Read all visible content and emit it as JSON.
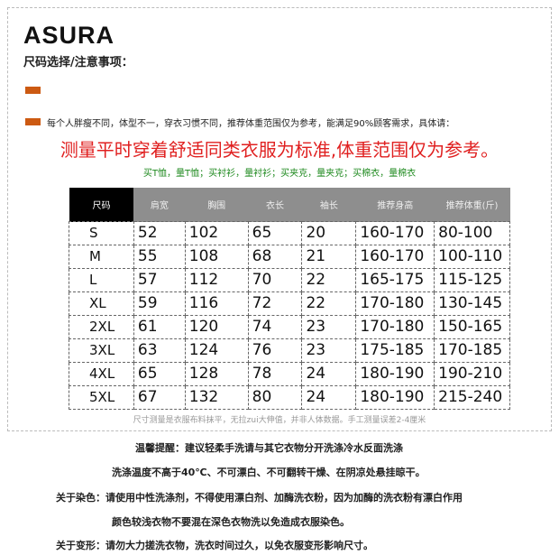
{
  "brand": "ASURA",
  "subtitle": "尺码选择/注意事项：",
  "accent": "#cc5a12",
  "note": "每个人胖瘦不同，体型不一，穿衣习惯不同，推荐体重范围仅为参考，能满足90%顾客需求，具体请：",
  "headline": "测量平时穿着舒适同类衣服为标准,体重范围仅为参考。",
  "tip": "买T恤，量T恤；买衬衫，量衬衫；买夹克，量夹克；买棉衣，量棉衣",
  "table": {
    "headers": [
      "尺码",
      "肩宽",
      "胸围",
      "衣长",
      "袖长",
      "推荐身高",
      "推荐体重(斤)"
    ],
    "rows": [
      [
        "S",
        "52",
        "102",
        "65",
        "20",
        "160-170",
        "80-100"
      ],
      [
        "M",
        "55",
        "108",
        "68",
        "21",
        "160-170",
        "100-110"
      ],
      [
        "L",
        "57",
        "112",
        "70",
        "22",
        "165-175",
        "115-125"
      ],
      [
        "XL",
        "59",
        "116",
        "72",
        "22",
        "170-180",
        "130-145"
      ],
      [
        "2XL",
        "61",
        "120",
        "74",
        "23",
        "170-180",
        "150-165"
      ],
      [
        "3XL",
        "63",
        "124",
        "76",
        "23",
        "175-185",
        "170-185"
      ],
      [
        "4XL",
        "65",
        "128",
        "78",
        "24",
        "180-190",
        "190-210"
      ],
      [
        "5XL",
        "67",
        "132",
        "80",
        "24",
        "180-190",
        "215-240"
      ]
    ]
  },
  "footnote": "尺寸测量是衣服布料抹平，无拉zui大伸值，并非人体数据。手工测量误差2-4厘米",
  "care": [
    "温馨提醒：建议轻柔手洗请与其它衣物分开洗涤冷水反面洗涤",
    "洗涤温度不高于40℃、不可漂白、不可翻转干燥、在阴凉处悬挂晾干。",
    "关于染色：请使用中性洗涤剂，不得使用漂白剂、加酶洗衣粉，因为加酶的洗衣粉有漂白作用",
    "颜色较浅衣物不要混在深色衣物洗以免造成衣服染色。",
    "关于变形：请勿大力搓洗衣物，洗衣时间过久，以免衣服变形影响尺寸。"
  ]
}
